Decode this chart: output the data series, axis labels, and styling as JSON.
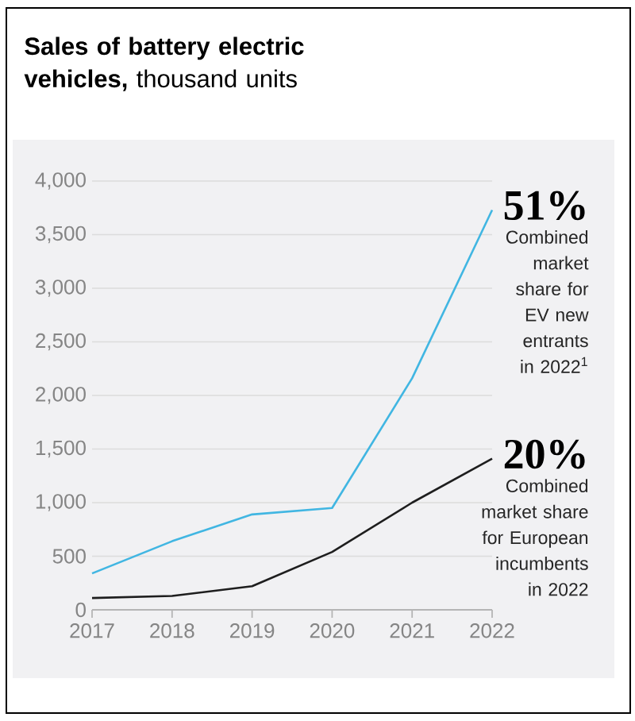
{
  "chart_data": {
    "type": "line",
    "title": "**Sales of battery electric vehicles,** thousand units",
    "x": [
      2017,
      2018,
      2019,
      2020,
      2021,
      2022
    ],
    "series": [
      {
        "color": "#41b6e2",
        "values": [
          340,
          640,
          890,
          950,
          2160,
          3730
        ]
      },
      {
        "color": "#1e1e1e",
        "values": [
          110,
          130,
          220,
          540,
          1000,
          1410
        ]
      }
    ],
    "xlim": [
      2017,
      2022
    ],
    "xticks": [
      2017,
      2018,
      2019,
      2020,
      2021,
      2022
    ],
    "ylim": [
      0,
      4000
    ],
    "yticks": [
      0,
      500,
      {
        "value": 1000,
        "label": "1,000"
      },
      {
        "value": 1500,
        "label": "1,500"
      },
      {
        "value": 2000,
        "label": "2,000"
      },
      {
        "value": 2500,
        "label": "2,500"
      },
      {
        "value": 3000,
        "label": "3,000"
      },
      {
        "value": 3500,
        "label": "3,500"
      },
      {
        "value": 4000,
        "label": "4,000"
      }
    ],
    "grid": "y",
    "annotations": [
      {
        "text": "51%",
        "x": 2022,
        "y": 3730
      },
      "Combined market share for EV new entrants in 2022$^{1}$",
      {
        "text": "20%",
        "x": 2022,
        "y": 1410
      },
      "Combined market share for European incumbents in 2022"
    ]
  }
}
